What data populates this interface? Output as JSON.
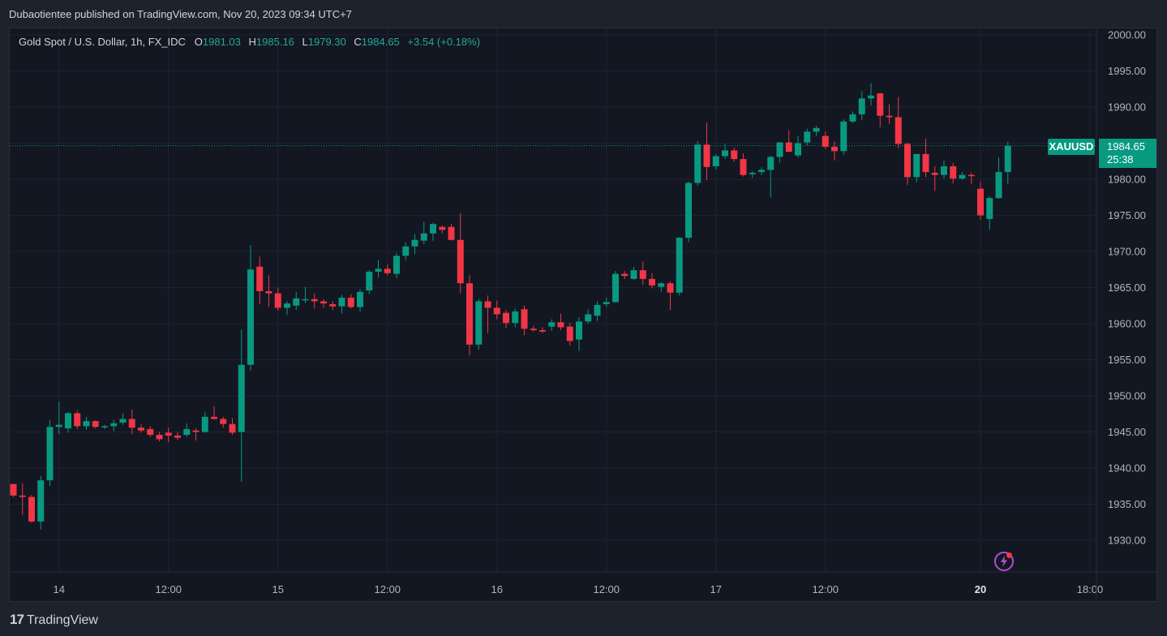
{
  "header": {
    "published_text": "Dubaotientee published on TradingView.com, Nov 20, 2023 09:34 UTC+7"
  },
  "legend": {
    "title": "Gold Spot / U.S. Dollar, 1h, FX_IDC",
    "open_key": "O",
    "open": "1981.03",
    "high_key": "H",
    "high": "1985.16",
    "low_key": "L",
    "low": "1979.30",
    "close_key": "C",
    "close": "1984.65",
    "change": "+3.54 (+0.18%)"
  },
  "price_badge": {
    "symbol": "XAUUSD",
    "price": "1984.65",
    "countdown": "25:38"
  },
  "footer": {
    "brand_logo": "17",
    "brand_name": "TradingView"
  },
  "colors": {
    "up": "#089981",
    "down": "#f23645",
    "grid": "#1f2330",
    "axis_text": "#b2b5be",
    "background": "#131722",
    "badge": "#089981"
  },
  "icons": {
    "bolt": "lightning-icon",
    "logo": "tradingview-logo-icon"
  },
  "chart_data": {
    "type": "candlestick",
    "title": "Gold Spot / U.S. Dollar, 1h, FX_IDC",
    "symbol": "XAUUSD",
    "ylim": [
      1926,
      2001
    ],
    "y_ticks": [
      "2000.00",
      "1995.00",
      "1990.00",
      "1985.00",
      "1980.00",
      "1975.00",
      "1970.00",
      "1965.00",
      "1960.00",
      "1955.00",
      "1950.00",
      "1945.00",
      "1940.00",
      "1935.00",
      "1930.00"
    ],
    "x_ticks": [
      {
        "label": "14",
        "slot": 5,
        "bold": false
      },
      {
        "label": "12:00",
        "slot": 17,
        "bold": false
      },
      {
        "label": "15",
        "slot": 29,
        "bold": false
      },
      {
        "label": "12:00",
        "slot": 41,
        "bold": false
      },
      {
        "label": "16",
        "slot": 53,
        "bold": false
      },
      {
        "label": "12:00",
        "slot": 65,
        "bold": false
      },
      {
        "label": "17",
        "slot": 77,
        "bold": false
      },
      {
        "label": "12:00",
        "slot": 89,
        "bold": false
      },
      {
        "label": "20",
        "slot": 106,
        "bold": true
      },
      {
        "label": "18:00",
        "slot": 118,
        "bold": false
      }
    ],
    "last_price": 1984.65,
    "grid": true,
    "candles": [
      {
        "o": 1937.8,
        "h": 1937.8,
        "l": 1936.0,
        "c": 1936.2
      },
      {
        "o": 1936.2,
        "h": 1937.9,
        "l": 1933.5,
        "c": 1936.0
      },
      {
        "o": 1936.0,
        "h": 1936.3,
        "l": 1932.4,
        "c": 1932.6
      },
      {
        "o": 1932.6,
        "h": 1938.9,
        "l": 1931.5,
        "c": 1938.3
      },
      {
        "o": 1938.3,
        "h": 1946.6,
        "l": 1937.5,
        "c": 1945.7
      },
      {
        "o": 1945.7,
        "h": 1949.2,
        "l": 1944.7,
        "c": 1946.0
      },
      {
        "o": 1945.5,
        "h": 1947.8,
        "l": 1944.9,
        "c": 1947.6
      },
      {
        "o": 1947.6,
        "h": 1948.0,
        "l": 1945.4,
        "c": 1945.8
      },
      {
        "o": 1945.8,
        "h": 1947.1,
        "l": 1945.3,
        "c": 1946.5
      },
      {
        "o": 1946.5,
        "h": 1946.6,
        "l": 1945.5,
        "c": 1945.7
      },
      {
        "o": 1945.8,
        "h": 1946.0,
        "l": 1945.4,
        "c": 1945.8
      },
      {
        "o": 1945.8,
        "h": 1946.7,
        "l": 1945.1,
        "c": 1946.2
      },
      {
        "o": 1946.3,
        "h": 1947.6,
        "l": 1946.0,
        "c": 1946.8
      },
      {
        "o": 1946.8,
        "h": 1948.1,
        "l": 1944.7,
        "c": 1945.6
      },
      {
        "o": 1945.6,
        "h": 1946.1,
        "l": 1944.9,
        "c": 1945.2
      },
      {
        "o": 1945.4,
        "h": 1945.8,
        "l": 1944.3,
        "c": 1944.6
      },
      {
        "o": 1944.6,
        "h": 1945.0,
        "l": 1943.7,
        "c": 1944.0
      },
      {
        "o": 1944.9,
        "h": 1945.6,
        "l": 1943.6,
        "c": 1944.5
      },
      {
        "o": 1944.5,
        "h": 1945.0,
        "l": 1943.9,
        "c": 1944.2
      },
      {
        "o": 1944.6,
        "h": 1946.2,
        "l": 1944.3,
        "c": 1945.4
      },
      {
        "o": 1945.2,
        "h": 1945.5,
        "l": 1943.8,
        "c": 1945.0
      },
      {
        "o": 1945.0,
        "h": 1947.8,
        "l": 1944.9,
        "c": 1947.1
      },
      {
        "o": 1947.1,
        "h": 1948.6,
        "l": 1946.7,
        "c": 1946.8
      },
      {
        "o": 1946.8,
        "h": 1947.1,
        "l": 1945.6,
        "c": 1946.1
      },
      {
        "o": 1946.1,
        "h": 1946.9,
        "l": 1944.6,
        "c": 1944.9
      },
      {
        "o": 1945.0,
        "h": 1959.2,
        "l": 1938.1,
        "c": 1954.3
      },
      {
        "o": 1954.3,
        "h": 1970.9,
        "l": 1953.5,
        "c": 1967.5
      },
      {
        "o": 1967.9,
        "h": 1969.3,
        "l": 1962.7,
        "c": 1964.5
      },
      {
        "o": 1964.5,
        "h": 1966.7,
        "l": 1962.3,
        "c": 1964.2
      },
      {
        "o": 1964.2,
        "h": 1965.0,
        "l": 1961.8,
        "c": 1962.2
      },
      {
        "o": 1962.2,
        "h": 1963.1,
        "l": 1961.2,
        "c": 1962.8
      },
      {
        "o": 1962.5,
        "h": 1964.4,
        "l": 1961.9,
        "c": 1963.5
      },
      {
        "o": 1963.3,
        "h": 1965.1,
        "l": 1962.9,
        "c": 1963.4
      },
      {
        "o": 1963.4,
        "h": 1964.2,
        "l": 1962.1,
        "c": 1963.1
      },
      {
        "o": 1963.1,
        "h": 1963.4,
        "l": 1962.2,
        "c": 1962.8
      },
      {
        "o": 1962.7,
        "h": 1963.1,
        "l": 1961.9,
        "c": 1962.4
      },
      {
        "o": 1962.4,
        "h": 1964.0,
        "l": 1961.4,
        "c": 1963.6
      },
      {
        "o": 1963.6,
        "h": 1964.1,
        "l": 1962.1,
        "c": 1962.3
      },
      {
        "o": 1962.3,
        "h": 1964.8,
        "l": 1961.7,
        "c": 1964.4
      },
      {
        "o": 1964.6,
        "h": 1967.4,
        "l": 1964.1,
        "c": 1967.2
      },
      {
        "o": 1967.2,
        "h": 1968.8,
        "l": 1966.4,
        "c": 1967.6
      },
      {
        "o": 1967.6,
        "h": 1968.2,
        "l": 1966.7,
        "c": 1967.0
      },
      {
        "o": 1966.9,
        "h": 1969.8,
        "l": 1966.3,
        "c": 1969.4
      },
      {
        "o": 1969.4,
        "h": 1971.3,
        "l": 1968.8,
        "c": 1970.7
      },
      {
        "o": 1970.7,
        "h": 1972.4,
        "l": 1969.6,
        "c": 1971.6
      },
      {
        "o": 1971.5,
        "h": 1974.1,
        "l": 1971.0,
        "c": 1972.5
      },
      {
        "o": 1972.5,
        "h": 1974.0,
        "l": 1971.5,
        "c": 1973.8
      },
      {
        "o": 1973.4,
        "h": 1973.6,
        "l": 1972.5,
        "c": 1973.0
      },
      {
        "o": 1973.4,
        "h": 1973.8,
        "l": 1971.5,
        "c": 1971.6
      },
      {
        "o": 1971.6,
        "h": 1975.3,
        "l": 1964.2,
        "c": 1965.6
      },
      {
        "o": 1965.6,
        "h": 1966.7,
        "l": 1955.6,
        "c": 1957.1
      },
      {
        "o": 1957.1,
        "h": 1963.4,
        "l": 1956.4,
        "c": 1963.1
      },
      {
        "o": 1963.1,
        "h": 1963.9,
        "l": 1958.7,
        "c": 1962.2
      },
      {
        "o": 1962.2,
        "h": 1963.2,
        "l": 1960.6,
        "c": 1961.3
      },
      {
        "o": 1961.5,
        "h": 1961.9,
        "l": 1959.4,
        "c": 1960.1
      },
      {
        "o": 1960.1,
        "h": 1962.1,
        "l": 1959.5,
        "c": 1961.7
      },
      {
        "o": 1962.0,
        "h": 1962.5,
        "l": 1958.4,
        "c": 1959.3
      },
      {
        "o": 1959.3,
        "h": 1959.7,
        "l": 1958.9,
        "c": 1959.1
      },
      {
        "o": 1959.1,
        "h": 1959.5,
        "l": 1958.7,
        "c": 1958.9
      },
      {
        "o": 1959.6,
        "h": 1960.6,
        "l": 1959.0,
        "c": 1960.2
      },
      {
        "o": 1960.2,
        "h": 1961.4,
        "l": 1959.1,
        "c": 1959.5
      },
      {
        "o": 1959.6,
        "h": 1960.1,
        "l": 1957.0,
        "c": 1957.6
      },
      {
        "o": 1957.8,
        "h": 1960.9,
        "l": 1956.2,
        "c": 1960.3
      },
      {
        "o": 1960.3,
        "h": 1962.0,
        "l": 1960.0,
        "c": 1961.3
      },
      {
        "o": 1961.1,
        "h": 1963.1,
        "l": 1960.4,
        "c": 1962.6
      },
      {
        "o": 1962.7,
        "h": 1963.6,
        "l": 1962.3,
        "c": 1963.0
      },
      {
        "o": 1963.0,
        "h": 1967.3,
        "l": 1962.9,
        "c": 1966.9
      },
      {
        "o": 1966.9,
        "h": 1967.3,
        "l": 1966.2,
        "c": 1966.6
      },
      {
        "o": 1966.2,
        "h": 1967.9,
        "l": 1966.1,
        "c": 1967.4
      },
      {
        "o": 1967.4,
        "h": 1968.6,
        "l": 1965.4,
        "c": 1966.2
      },
      {
        "o": 1966.2,
        "h": 1967.0,
        "l": 1964.9,
        "c": 1965.3
      },
      {
        "o": 1965.1,
        "h": 1965.7,
        "l": 1964.4,
        "c": 1965.6
      },
      {
        "o": 1965.6,
        "h": 1965.9,
        "l": 1961.9,
        "c": 1964.3
      },
      {
        "o": 1964.3,
        "h": 1972.0,
        "l": 1963.9,
        "c": 1971.9
      },
      {
        "o": 1971.9,
        "h": 1979.7,
        "l": 1971.3,
        "c": 1979.5
      },
      {
        "o": 1979.5,
        "h": 1985.3,
        "l": 1979.1,
        "c": 1984.8
      },
      {
        "o": 1984.8,
        "h": 1987.9,
        "l": 1979.9,
        "c": 1981.7
      },
      {
        "o": 1981.8,
        "h": 1983.5,
        "l": 1981.3,
        "c": 1983.2
      },
      {
        "o": 1983.2,
        "h": 1984.9,
        "l": 1982.8,
        "c": 1984.0
      },
      {
        "o": 1984.0,
        "h": 1984.4,
        "l": 1982.4,
        "c": 1982.8
      },
      {
        "o": 1982.8,
        "h": 1983.6,
        "l": 1980.4,
        "c": 1980.6
      },
      {
        "o": 1980.7,
        "h": 1981.1,
        "l": 1980.2,
        "c": 1980.9
      },
      {
        "o": 1981.0,
        "h": 1981.7,
        "l": 1980.6,
        "c": 1981.3
      },
      {
        "o": 1981.3,
        "h": 1983.3,
        "l": 1977.5,
        "c": 1983.1
      },
      {
        "o": 1983.1,
        "h": 1985.2,
        "l": 1982.3,
        "c": 1985.1
      },
      {
        "o": 1985.1,
        "h": 1986.8,
        "l": 1984.0,
        "c": 1983.8
      },
      {
        "o": 1983.3,
        "h": 1986.0,
        "l": 1983.0,
        "c": 1985.0
      },
      {
        "o": 1985.1,
        "h": 1987.0,
        "l": 1984.7,
        "c": 1986.6
      },
      {
        "o": 1986.6,
        "h": 1987.4,
        "l": 1986.0,
        "c": 1987.1
      },
      {
        "o": 1986.0,
        "h": 1986.6,
        "l": 1984.2,
        "c": 1984.5
      },
      {
        "o": 1984.5,
        "h": 1985.2,
        "l": 1982.6,
        "c": 1983.9
      },
      {
        "o": 1983.9,
        "h": 1988.3,
        "l": 1983.4,
        "c": 1988.0
      },
      {
        "o": 1988.0,
        "h": 1989.4,
        "l": 1987.8,
        "c": 1989.0
      },
      {
        "o": 1989.0,
        "h": 1992.2,
        "l": 1988.2,
        "c": 1991.2
      },
      {
        "o": 1991.2,
        "h": 1993.3,
        "l": 1990.2,
        "c": 1991.6
      },
      {
        "o": 1991.9,
        "h": 1992.0,
        "l": 1987.2,
        "c": 1988.8
      },
      {
        "o": 1988.8,
        "h": 1990.4,
        "l": 1987.7,
        "c": 1988.6
      },
      {
        "o": 1988.6,
        "h": 1991.4,
        "l": 1984.3,
        "c": 1984.9
      },
      {
        "o": 1984.9,
        "h": 1985.1,
        "l": 1979.2,
        "c": 1980.3
      },
      {
        "o": 1980.3,
        "h": 1983.5,
        "l": 1979.6,
        "c": 1983.5
      },
      {
        "o": 1983.5,
        "h": 1985.6,
        "l": 1980.3,
        "c": 1981.0
      },
      {
        "o": 1980.9,
        "h": 1981.8,
        "l": 1978.4,
        "c": 1980.6
      },
      {
        "o": 1980.6,
        "h": 1982.6,
        "l": 1980.1,
        "c": 1981.8
      },
      {
        "o": 1981.8,
        "h": 1982.3,
        "l": 1979.4,
        "c": 1980.1
      },
      {
        "o": 1980.1,
        "h": 1981.0,
        "l": 1979.9,
        "c": 1980.6
      },
      {
        "o": 1980.6,
        "h": 1980.9,
        "l": 1979.3,
        "c": 1980.5
      },
      {
        "o": 1978.7,
        "h": 1979.7,
        "l": 1974.4,
        "c": 1975.0
      },
      {
        "o": 1974.5,
        "h": 1977.6,
        "l": 1973.0,
        "c": 1977.4
      },
      {
        "o": 1977.4,
        "h": 1983.0,
        "l": 1977.3,
        "c": 1981.0
      },
      {
        "o": 1981.0,
        "h": 1985.2,
        "l": 1979.3,
        "c": 1984.65
      }
    ]
  }
}
